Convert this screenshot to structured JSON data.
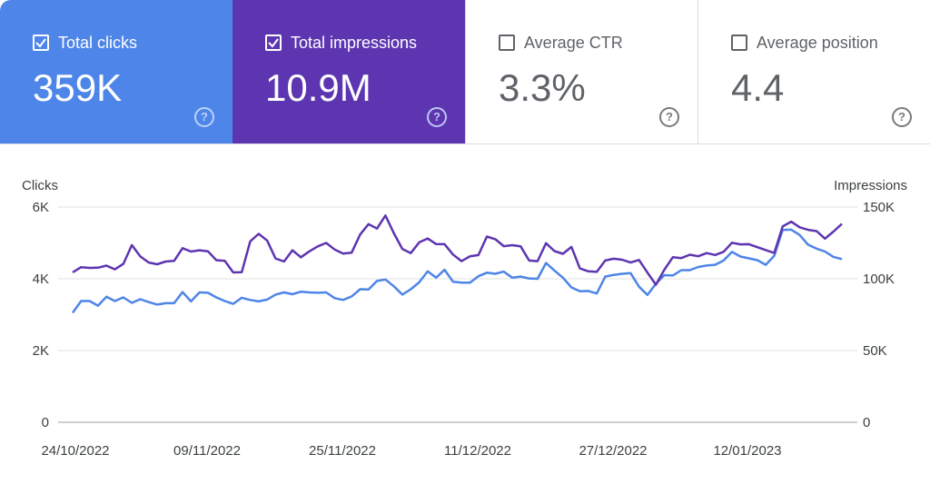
{
  "metrics": [
    {
      "label": "Total clicks",
      "value": "359K",
      "checked": true
    },
    {
      "label": "Total impressions",
      "value": "10.9M",
      "checked": true
    },
    {
      "label": "Average CTR",
      "value": "3.3%",
      "checked": false
    },
    {
      "label": "Average position",
      "value": "4.4",
      "checked": false
    }
  ],
  "help_glyph": "?",
  "colors": {
    "clicks": "#4e85e8",
    "impressions": "#5e35b1",
    "grid": "#e0e0e0"
  },
  "chart_data": {
    "type": "line",
    "left_axis": {
      "label": "Clicks",
      "ticks": [
        "0",
        "2K",
        "4K",
        "6K"
      ],
      "ylim": [
        0,
        6000
      ]
    },
    "right_axis": {
      "label": "Impressions",
      "ticks": [
        "0",
        "50K",
        "100K",
        "150K"
      ],
      "ylim": [
        0,
        150000
      ]
    },
    "x_ticks": [
      "24/10/2022",
      "09/11/2022",
      "25/11/2022",
      "11/12/2022",
      "27/12/2022",
      "12/01/2023"
    ],
    "x_range": [
      "2022-10-24",
      "2023-01-28"
    ],
    "grid": true,
    "series": [
      {
        "axis": "left",
        "values": [
          3050,
          3380,
          3380,
          3250,
          3500,
          3380,
          3480,
          3330,
          3430,
          3350,
          3280,
          3320,
          3320,
          3630,
          3370,
          3620,
          3610,
          3480,
          3380,
          3300,
          3470,
          3410,
          3370,
          3420,
          3560,
          3620,
          3570,
          3640,
          3620,
          3610,
          3620,
          3460,
          3410,
          3510,
          3710,
          3700,
          3940,
          3980,
          3790,
          3560,
          3710,
          3900,
          4210,
          4030,
          4250,
          3920,
          3890,
          3890,
          4070,
          4170,
          4140,
          4200,
          4030,
          4060,
          4010,
          4000,
          4440,
          4230,
          4030,
          3760,
          3650,
          3660,
          3590,
          4060,
          4110,
          4140,
          4160,
          3780,
          3550,
          3860,
          4100,
          4090,
          4240,
          4240,
          4330,
          4370,
          4390,
          4510,
          4750,
          4620,
          4570,
          4520,
          4390,
          4640,
          5360,
          5370,
          5220,
          4950,
          4840,
          4760,
          4610,
          4550
        ]
      },
      {
        "axis": "right",
        "values": [
          104500,
          108100,
          107600,
          107700,
          109200,
          106600,
          110400,
          123500,
          115600,
          111300,
          110100,
          112000,
          112500,
          121300,
          119000,
          119900,
          119200,
          113000,
          112500,
          104400,
          104600,
          126100,
          131300,
          126700,
          114200,
          112000,
          119900,
          115000,
          119100,
          122600,
          125000,
          120400,
          117600,
          118200,
          130800,
          138100,
          135000,
          144100,
          131700,
          120800,
          117900,
          125400,
          128100,
          124200,
          124100,
          116900,
          112300,
          115700,
          116500,
          129400,
          127600,
          122700,
          123400,
          122600,
          112700,
          112300,
          124800,
          119300,
          117400,
          122200,
          107200,
          105200,
          104800,
          112700,
          114000,
          113300,
          111300,
          113100,
          104300,
          95900,
          106300,
          115000,
          114400,
          116800,
          115700,
          117900,
          116600,
          118800,
          125100,
          124000,
          124100,
          122000,
          120000,
          118000,
          136500,
          139800,
          135900,
          134100,
          133200,
          128000,
          132900,
          138300
        ]
      }
    ]
  }
}
